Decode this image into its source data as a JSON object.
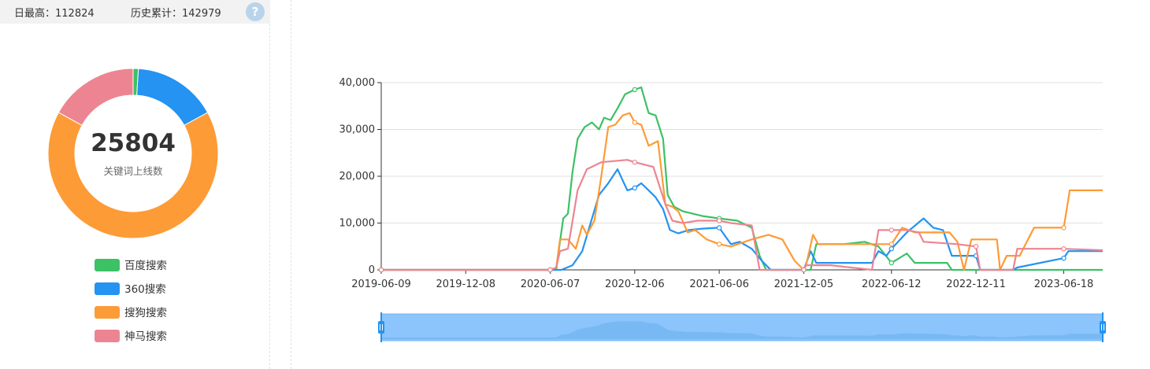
{
  "header": {
    "daily_max_label": "日最高：112824",
    "history_total_label": "历史累计：142979",
    "help_symbol": "?"
  },
  "colors": {
    "baidu": "#3cc165",
    "s360": "#2493f1",
    "sogou": "#fd9b36",
    "shenma": "#ec8591",
    "grid": "#e0e0e0",
    "axis": "#333333",
    "zoom_fill": "#8bc5fb",
    "zoom_handle": "#2493f1"
  },
  "chart_data": [
    {
      "type": "pie",
      "donut": true,
      "center_value": "25804",
      "center_label": "关键词上线数",
      "slices": [
        {
          "name": "百度搜索",
          "value": 0.01
        },
        {
          "name": "360搜索",
          "value": 0.16
        },
        {
          "name": "搜狗搜索",
          "value": 0.66
        },
        {
          "name": "神马搜索",
          "value": 0.17
        }
      ],
      "legend_placement": "bottom"
    },
    {
      "type": "line",
      "x_axis": {
        "type": "date",
        "range": [
          "2019-06-09",
          "2023-09-10"
        ],
        "tick_labels": [
          "2019-06-09",
          "2019-12-08",
          "2020-06-07",
          "2020-12-06",
          "2021-06-06",
          "2021-12-05",
          "2022-06-12",
          "2022-12-11",
          "2023-06-18"
        ]
      },
      "y_axis": {
        "range": [
          0,
          40000
        ],
        "ticks": [
          0,
          10000,
          20000,
          30000,
          40000
        ],
        "tick_labels": [
          "0",
          "10,000",
          "20,000",
          "30,000",
          "40,000"
        ]
      },
      "grid": true,
      "data_zoom": {
        "start_percent": 0,
        "end_percent": 100
      },
      "series": [
        {
          "name": "百度搜索",
          "color": "#3cc165",
          "points": [
            [
              "2019-06-09",
              0
            ],
            [
              "2020-06-07",
              0
            ],
            [
              "2020-06-20",
              0
            ],
            [
              "2020-06-28",
              6000
            ],
            [
              "2020-07-05",
              11000
            ],
            [
              "2020-07-15",
              12000
            ],
            [
              "2020-07-25",
              21000
            ],
            [
              "2020-08-05",
              28000
            ],
            [
              "2020-08-20",
              30500
            ],
            [
              "2020-09-05",
              31500
            ],
            [
              "2020-09-20",
              30000
            ],
            [
              "2020-10-01",
              32500
            ],
            [
              "2020-10-15",
              32000
            ],
            [
              "2020-10-30",
              34500
            ],
            [
              "2020-11-15",
              37500
            ],
            [
              "2020-12-06",
              38500
            ],
            [
              "2020-12-20",
              39000
            ],
            [
              "2021-01-05",
              33500
            ],
            [
              "2021-01-20",
              33000
            ],
            [
              "2021-02-05",
              28000
            ],
            [
              "2021-02-15",
              16000
            ],
            [
              "2021-03-01",
              13500
            ],
            [
              "2021-03-20",
              12500
            ],
            [
              "2021-04-10",
              12000
            ],
            [
              "2021-05-01",
              11500
            ],
            [
              "2021-06-06",
              11000
            ],
            [
              "2021-07-15",
              10500
            ],
            [
              "2021-08-15",
              9000
            ],
            [
              "2021-09-01",
              3000
            ],
            [
              "2021-09-15",
              0
            ],
            [
              "2021-12-05",
              0
            ],
            [
              "2021-12-20",
              0
            ],
            [
              "2022-01-01",
              5500
            ],
            [
              "2022-03-01",
              5500
            ],
            [
              "2022-04-15",
              6000
            ],
            [
              "2022-05-15",
              5000
            ],
            [
              "2022-06-12",
              1500
            ],
            [
              "2022-07-15",
              3500
            ],
            [
              "2022-08-01",
              1500
            ],
            [
              "2022-10-10",
              1500
            ],
            [
              "2022-10-20",
              0
            ],
            [
              "2023-09-10",
              0
            ]
          ]
        },
        {
          "name": "360搜索",
          "color": "#2493f1",
          "points": [
            [
              "2019-06-09",
              0
            ],
            [
              "2020-06-07",
              0
            ],
            [
              "2020-07-01",
              0
            ],
            [
              "2020-07-25",
              1000
            ],
            [
              "2020-08-15",
              4000
            ],
            [
              "2020-09-05",
              11000
            ],
            [
              "2020-09-20",
              16000
            ],
            [
              "2020-10-10",
              18500
            ],
            [
              "2020-10-30",
              21500
            ],
            [
              "2020-11-20",
              17000
            ],
            [
              "2020-12-06",
              17500
            ],
            [
              "2020-12-20",
              18500
            ],
            [
              "2021-01-05",
              17000
            ],
            [
              "2021-01-20",
              15500
            ],
            [
              "2021-02-05",
              13000
            ],
            [
              "2021-02-20",
              8500
            ],
            [
              "2021-03-10",
              7800
            ],
            [
              "2021-04-01",
              8500
            ],
            [
              "2021-05-01",
              8800
            ],
            [
              "2021-06-06",
              9000
            ],
            [
              "2021-07-01",
              5500
            ],
            [
              "2021-07-20",
              6000
            ],
            [
              "2021-08-15",
              4500
            ],
            [
              "2021-09-05",
              2000
            ],
            [
              "2021-09-25",
              0
            ],
            [
              "2021-12-05",
              0
            ],
            [
              "2021-12-20",
              4000
            ],
            [
              "2022-01-01",
              1500
            ],
            [
              "2022-05-01",
              1500
            ],
            [
              "2022-05-15",
              4000
            ],
            [
              "2022-06-01",
              3000
            ],
            [
              "2022-06-12",
              4500
            ],
            [
              "2022-07-15",
              8000
            ],
            [
              "2022-08-20",
              11000
            ],
            [
              "2022-09-10",
              9000
            ],
            [
              "2022-10-01",
              8500
            ],
            [
              "2022-10-20",
              3000
            ],
            [
              "2022-12-01",
              3000
            ],
            [
              "2022-12-11",
              3000
            ],
            [
              "2022-12-20",
              0
            ],
            [
              "2023-03-01",
              0
            ],
            [
              "2023-03-10",
              500
            ],
            [
              "2023-06-18",
              2500
            ],
            [
              "2023-06-28",
              4000
            ],
            [
              "2023-09-10",
              4000
            ]
          ]
        },
        {
          "name": "搜狗搜索",
          "color": "#fd9b36",
          "points": [
            [
              "2019-06-09",
              0
            ],
            [
              "2020-06-07",
              0
            ],
            [
              "2020-06-20",
              500
            ],
            [
              "2020-06-28",
              6500
            ],
            [
              "2020-07-15",
              6500
            ],
            [
              "2020-08-01",
              4500
            ],
            [
              "2020-08-15",
              9500
            ],
            [
              "2020-08-25",
              7500
            ],
            [
              "2020-09-10",
              10500
            ],
            [
              "2020-09-25",
              20000
            ],
            [
              "2020-10-10",
              30500
            ],
            [
              "2020-10-25",
              31000
            ],
            [
              "2020-11-10",
              33000
            ],
            [
              "2020-11-25",
              33500
            ],
            [
              "2020-12-06",
              31500
            ],
            [
              "2020-12-20",
              31000
            ],
            [
              "2021-01-05",
              26500
            ],
            [
              "2021-01-25",
              27500
            ],
            [
              "2021-02-10",
              14000
            ],
            [
              "2021-02-25",
              13500
            ],
            [
              "2021-03-10",
              12500
            ],
            [
              "2021-03-30",
              8000
            ],
            [
              "2021-04-15",
              8500
            ],
            [
              "2021-05-10",
              6500
            ],
            [
              "2021-06-06",
              5500
            ],
            [
              "2021-07-01",
              5000
            ],
            [
              "2021-08-15",
              6500
            ],
            [
              "2021-09-20",
              7500
            ],
            [
              "2021-10-20",
              6500
            ],
            [
              "2021-11-15",
              2000
            ],
            [
              "2021-12-05",
              0
            ],
            [
              "2021-12-10",
              1000
            ],
            [
              "2021-12-25",
              7500
            ],
            [
              "2022-01-05",
              5500
            ],
            [
              "2022-02-01",
              5500
            ],
            [
              "2022-06-12",
              5500
            ],
            [
              "2022-07-05",
              9000
            ],
            [
              "2022-08-01",
              8000
            ],
            [
              "2022-10-15",
              8000
            ],
            [
              "2022-11-01",
              6000
            ],
            [
              "2022-11-15",
              0
            ],
            [
              "2022-12-01",
              6500
            ],
            [
              "2023-01-25",
              6500
            ],
            [
              "2023-02-01",
              0
            ],
            [
              "2023-02-15",
              3000
            ],
            [
              "2023-03-15",
              3000
            ],
            [
              "2023-04-15",
              9000
            ],
            [
              "2023-06-18",
              9000
            ],
            [
              "2023-07-01",
              17000
            ],
            [
              "2023-09-10",
              17000
            ]
          ]
        },
        {
          "name": "神马搜索",
          "color": "#ec8591",
          "points": [
            [
              "2019-06-09",
              0
            ],
            [
              "2020-06-07",
              0
            ],
            [
              "2020-06-20",
              500
            ],
            [
              "2020-06-28",
              4000
            ],
            [
              "2020-07-15",
              4500
            ],
            [
              "2020-08-05",
              17000
            ],
            [
              "2020-08-25",
              21500
            ],
            [
              "2020-09-25",
              23000
            ],
            [
              "2020-11-20",
              23500
            ],
            [
              "2020-12-06",
              23000
            ],
            [
              "2021-01-15",
              22000
            ],
            [
              "2021-02-10",
              14000
            ],
            [
              "2021-02-25",
              10500
            ],
            [
              "2021-03-20",
              10000
            ],
            [
              "2021-04-20",
              10500
            ],
            [
              "2021-06-06",
              10500
            ],
            [
              "2021-07-01",
              10000
            ],
            [
              "2021-08-15",
              9500
            ],
            [
              "2021-09-01",
              0
            ],
            [
              "2021-12-05",
              0
            ],
            [
              "2021-12-10",
              1000
            ],
            [
              "2022-02-01",
              1000
            ],
            [
              "2022-05-01",
              0
            ],
            [
              "2022-05-15",
              8500
            ],
            [
              "2022-06-12",
              8500
            ],
            [
              "2022-07-15",
              8500
            ],
            [
              "2022-08-10",
              8000
            ],
            [
              "2022-08-20",
              6000
            ],
            [
              "2022-11-01",
              5500
            ],
            [
              "2022-12-11",
              5000
            ],
            [
              "2022-12-20",
              0
            ],
            [
              "2023-03-01",
              0
            ],
            [
              "2023-03-10",
              4500
            ],
            [
              "2023-06-18",
              4500
            ],
            [
              "2023-09-10",
              4200
            ]
          ]
        }
      ]
    }
  ]
}
